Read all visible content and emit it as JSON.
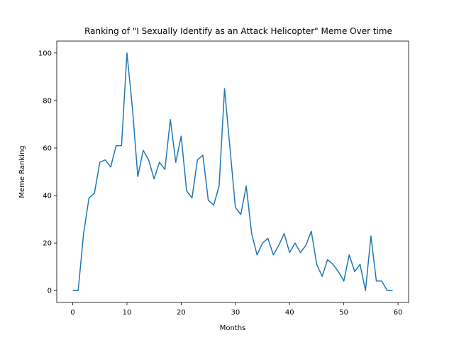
{
  "chart_data": {
    "type": "line",
    "title": "Ranking of \"I Sexually Identify as an Attack Helicopter\" Meme Over time",
    "xlabel": "Months",
    "ylabel": "Meme Ranking",
    "xlim": [
      -2.95,
      61.95
    ],
    "ylim": [
      -5,
      105
    ],
    "xticks": [
      0,
      10,
      20,
      30,
      40,
      50,
      60
    ],
    "yticks": [
      0,
      20,
      40,
      60,
      80,
      100
    ],
    "grid": false,
    "legend": "none",
    "series": [
      {
        "color": "#1f77b4",
        "x": [
          0,
          1,
          2,
          3,
          4,
          5,
          6,
          7,
          8,
          9,
          10,
          11,
          12,
          13,
          14,
          15,
          16,
          17,
          18,
          19,
          20,
          21,
          22,
          23,
          24,
          25,
          26,
          27,
          28,
          29,
          30,
          31,
          32,
          33,
          34,
          35,
          36,
          37,
          38,
          39,
          40,
          41,
          42,
          43,
          44,
          45,
          46,
          47,
          48,
          49,
          50,
          51,
          52,
          53,
          54,
          55,
          56,
          57,
          58,
          59
        ],
        "values": [
          0,
          0,
          24,
          39,
          41,
          54,
          55,
          52,
          61,
          61,
          100,
          77,
          48,
          59,
          55,
          47,
          54,
          51,
          72,
          54,
          65,
          42,
          39,
          55,
          57,
          38,
          36,
          44,
          85,
          60,
          35,
          32,
          44,
          24,
          15,
          20,
          22,
          15,
          19,
          24,
          16,
          20,
          16,
          19,
          25,
          11,
          6,
          13,
          11,
          8,
          4,
          15,
          8,
          11,
          0,
          23,
          4,
          4,
          0,
          0
        ]
      }
    ]
  }
}
